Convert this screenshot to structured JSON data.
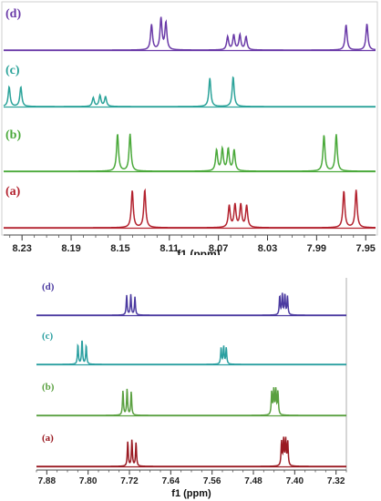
{
  "chart_data": [
    {
      "type": "line",
      "title": "",
      "xlabel": "f1 (ppm)",
      "xlim": [
        8.245,
        7.942
      ],
      "x_reversed": true,
      "xticks": [
        "8.23",
        "8.19",
        "8.15",
        "8.11",
        "8.07",
        "8.03",
        "7.99",
        "7.95"
      ],
      "tick_values": [
        8.23,
        8.19,
        8.15,
        8.11,
        8.07,
        8.03,
        7.99,
        7.95
      ],
      "grid": false,
      "series": [
        {
          "name": "(d)",
          "color": "#6a3aa8",
          "peaks": [
            {
              "ppm": 8.1245,
              "h": 0.58
            },
            {
              "ppm": 8.1168,
              "h": 0.72
            },
            {
              "ppm": 8.1128,
              "h": 0.62
            },
            {
              "ppm": 8.0625,
              "h": 0.3
            },
            {
              "ppm": 8.0575,
              "h": 0.34
            },
            {
              "ppm": 8.0525,
              "h": 0.34
            },
            {
              "ppm": 8.0475,
              "h": 0.3
            },
            {
              "ppm": 7.966,
              "h": 0.58
            },
            {
              "ppm": 7.949,
              "h": 0.6
            }
          ]
        },
        {
          "name": "(c)",
          "color": "#2ba39a",
          "peaks": [
            {
              "ppm": 8.2405,
              "h": 0.45
            },
            {
              "ppm": 8.231,
              "h": 0.45
            },
            {
              "ppm": 8.172,
              "h": 0.2
            },
            {
              "ppm": 8.1665,
              "h": 0.25
            },
            {
              "ppm": 8.162,
              "h": 0.22
            },
            {
              "ppm": 8.077,
              "h": 0.65
            },
            {
              "ppm": 8.058,
              "h": 0.68
            }
          ]
        },
        {
          "name": "(b)",
          "color": "#4aa93a",
          "peaks": [
            {
              "ppm": 8.1522,
              "h": 0.85
            },
            {
              "ppm": 8.142,
              "h": 0.85
            },
            {
              "ppm": 8.0715,
              "h": 0.48
            },
            {
              "ppm": 8.0668,
              "h": 0.5
            },
            {
              "ppm": 8.062,
              "h": 0.5
            },
            {
              "ppm": 8.0572,
              "h": 0.48
            },
            {
              "ppm": 7.984,
              "h": 0.82
            },
            {
              "ppm": 7.974,
              "h": 0.84
            }
          ]
        },
        {
          "name": "(a)",
          "color": "#b3222e",
          "peaks": [
            {
              "ppm": 8.1402,
              "h": 0.85
            },
            {
              "ppm": 8.13,
              "h": 0.86
            },
            {
              "ppm": 8.0612,
              "h": 0.5
            },
            {
              "ppm": 8.0565,
              "h": 0.52
            },
            {
              "ppm": 8.0518,
              "h": 0.52
            },
            {
              "ppm": 8.047,
              "h": 0.5
            },
            {
              "ppm": 7.9678,
              "h": 0.84
            },
            {
              "ppm": 7.9578,
              "h": 0.86
            }
          ]
        }
      ]
    },
    {
      "type": "line",
      "title": "",
      "xlabel": "f1 (ppm)",
      "xlim": [
        7.9,
        7.3
      ],
      "x_reversed": true,
      "xticks": [
        "7.88",
        "7.80",
        "7.72",
        "7.64",
        "7.56",
        "7.48",
        "7.40",
        "7.32"
      ],
      "tick_values": [
        7.88,
        7.8,
        7.72,
        7.64,
        7.56,
        7.48,
        7.4,
        7.32
      ],
      "grid": false,
      "series": [
        {
          "name": "(d)",
          "color": "#4b3aa0",
          "peaks": [
            {
              "ppm": 7.7253,
              "h": 0.6
            },
            {
              "ppm": 7.7173,
              "h": 0.62
            },
            {
              "ppm": 7.7093,
              "h": 0.55
            },
            {
              "ppm": 7.429,
              "h": 0.58
            },
            {
              "ppm": 7.424,
              "h": 0.62
            },
            {
              "ppm": 7.419,
              "h": 0.62
            },
            {
              "ppm": 7.414,
              "h": 0.56
            }
          ]
        },
        {
          "name": "(c)",
          "color": "#2a9fa0",
          "peaks": [
            {
              "ppm": 7.8197,
              "h": 0.6
            },
            {
              "ppm": 7.8117,
              "h": 0.75
            },
            {
              "ppm": 7.8037,
              "h": 0.58
            },
            {
              "ppm": 7.5425,
              "h": 0.5
            },
            {
              "ppm": 7.5375,
              "h": 0.54
            },
            {
              "ppm": 7.5325,
              "h": 0.5
            }
          ]
        },
        {
          "name": "(b)",
          "color": "#5aa040",
          "peaks": [
            {
              "ppm": 7.7325,
              "h": 0.75
            },
            {
              "ppm": 7.7245,
              "h": 0.8
            },
            {
              "ppm": 7.7165,
              "h": 0.72
            },
            {
              "ppm": 7.4445,
              "h": 0.7
            },
            {
              "ppm": 7.4405,
              "h": 0.76
            },
            {
              "ppm": 7.4365,
              "h": 0.76
            },
            {
              "ppm": 7.4325,
              "h": 0.7
            }
          ]
        },
        {
          "name": "(a)",
          "color": "#9a1a22",
          "peaks": [
            {
              "ppm": 7.7232,
              "h": 0.75
            },
            {
              "ppm": 7.7152,
              "h": 0.8
            },
            {
              "ppm": 7.7072,
              "h": 0.72
            },
            {
              "ppm": 7.4255,
              "h": 0.74
            },
            {
              "ppm": 7.4215,
              "h": 0.8
            },
            {
              "ppm": 7.4175,
              "h": 0.8
            },
            {
              "ppm": 7.4135,
              "h": 0.74
            }
          ]
        }
      ]
    }
  ]
}
